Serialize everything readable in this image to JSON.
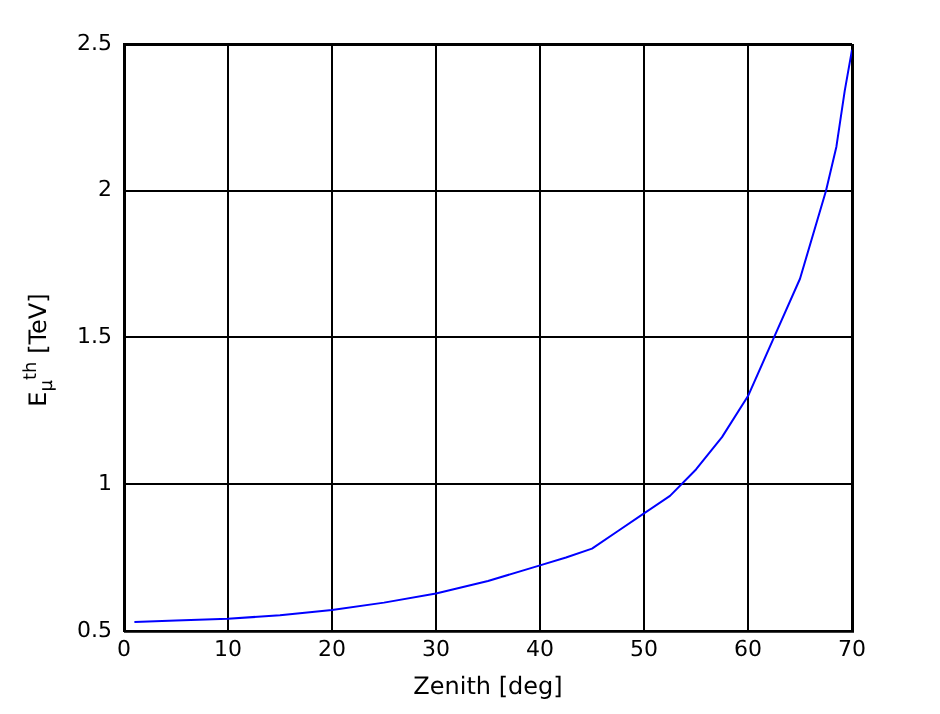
{
  "chart_data": {
    "type": "line",
    "xlabel": "Zenith [deg]",
    "ylabel": "E$_{μ}$$^{th}$ [TeV]",
    "series": [
      {
        "color": "#0000ff",
        "x": [
          1,
          5,
          10,
          15,
          20,
          25,
          30,
          35,
          40,
          42.5,
          45,
          47.5,
          50,
          52.5,
          55,
          57.5,
          60,
          62.5,
          65,
          67.5,
          68.5,
          69.3,
          70
        ],
        "values": [
          0.53,
          0.535,
          0.541,
          0.553,
          0.571,
          0.596,
          0.627,
          0.67,
          0.723,
          0.75,
          0.78,
          0.84,
          0.9,
          0.96,
          1.05,
          1.16,
          1.3,
          1.5,
          1.7,
          2.0,
          2.15,
          2.34,
          2.48
        ]
      }
    ],
    "xlim": [
      0,
      70
    ],
    "xticks": [
      0,
      10,
      20,
      30,
      40,
      50,
      60,
      70
    ],
    "ylim": [
      0.5,
      2.5
    ],
    "yticks": [
      0.5,
      1,
      1.5,
      2,
      2.5
    ],
    "grid": true,
    "marker": "none",
    "line_style": "solid",
    "legend": false
  }
}
